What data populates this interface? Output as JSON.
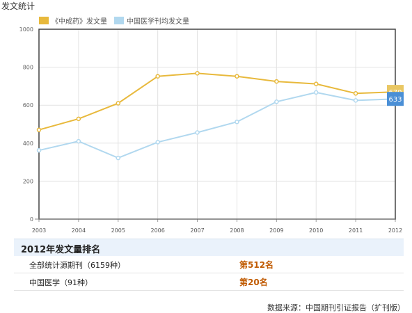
{
  "header": {
    "title": "发文统计"
  },
  "chart_data": {
    "type": "line",
    "categories": [
      "2003",
      "2004",
      "2005",
      "2006",
      "2007",
      "2008",
      "2009",
      "2010",
      "2011",
      "2012"
    ],
    "ylim": [
      0,
      1000
    ],
    "yticks": [
      0,
      200,
      400,
      600,
      800,
      1000
    ],
    "grid": true,
    "legend_position": "top-left",
    "series": [
      {
        "name": "《中成药》发文量",
        "color": "#e8b93c",
        "values": [
          470,
          528,
          610,
          752,
          768,
          752,
          725,
          712,
          662,
          670
        ],
        "end_label": "670"
      },
      {
        "name": "中国医学刊均发文量",
        "color": "#b1d8ef",
        "values": [
          362,
          410,
          322,
          405,
          456,
          512,
          618,
          667,
          625,
          633
        ],
        "end_label": "633"
      }
    ],
    "end_label_colors": [
      "#e9c763",
      "#4a8fd6"
    ]
  },
  "ranking": {
    "title": "2012年发文量排名",
    "rows": [
      {
        "label": "全部统计源期刊（6159种）",
        "value": "第512名"
      },
      {
        "label": "中国医学（91种）",
        "value": "第20名"
      }
    ]
  },
  "footer": {
    "source": "数据来源：中国期刊引证报告（扩刊版）"
  }
}
